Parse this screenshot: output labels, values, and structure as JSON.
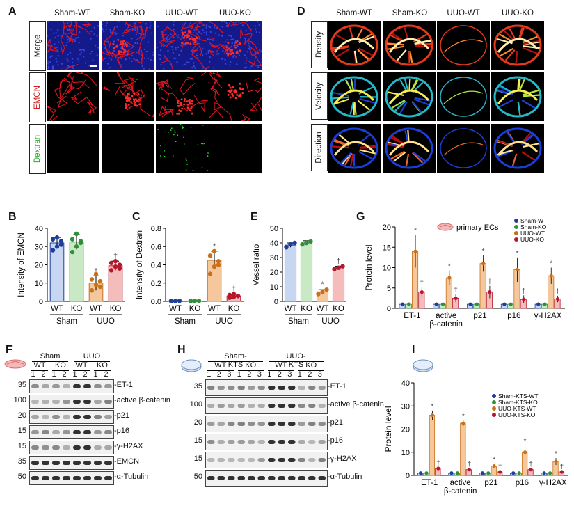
{
  "panels": {
    "A": {
      "letter": "A",
      "columns": [
        "Sham-WT",
        "Sham-KO",
        "UUO-WT",
        "UUO-KO"
      ],
      "rows": [
        "Merge",
        "EMCN",
        "Dextran"
      ]
    },
    "D": {
      "letter": "D",
      "columns": [
        "Sham-WT",
        "Sham-KO",
        "UUO-WT",
        "UUO-KO"
      ],
      "rows": [
        "Density",
        "Velocity",
        "Direction"
      ]
    },
    "F": {
      "letter": "F",
      "groups": [
        "Sham",
        "UUO"
      ],
      "genotypes": [
        "WT",
        "KO",
        "WT",
        "KO"
      ],
      "lanes": [
        "1",
        "2",
        "1",
        "2",
        "1",
        "2",
        "1",
        "2"
      ],
      "mw": [
        "35",
        "100",
        "20",
        "15",
        "15",
        "35",
        "50"
      ],
      "bands": [
        "-ET-1",
        "-active β-catenin",
        "-p21",
        "-p16",
        "-γ-H2AX",
        "-EMCN",
        "-α-Tubulin"
      ]
    },
    "H": {
      "letter": "H",
      "groups": [
        "Sham-KTS",
        "UUO-KTS"
      ],
      "genotypes": [
        "WT",
        "KO",
        "WT",
        "KO"
      ],
      "lanes": [
        "1",
        "2",
        "3",
        "1",
        "2",
        "3",
        "1",
        "2",
        "3",
        "1",
        "2",
        "3"
      ],
      "mw": [
        "35",
        "100",
        "20",
        "15",
        "15",
        "50"
      ],
      "bands": [
        "-ET-1",
        "-active β-catenin",
        "-p21",
        "-p16",
        "-γ-H2AX",
        "-α-Tubulin"
      ]
    }
  },
  "colors": {
    "wt_sham": "#1f3e9a",
    "ko_sham": "#2f8f3a",
    "wt_uuo": "#c9701b",
    "ko_uuo": "#b5182a",
    "bar_wt_sham": "#c7d7f2",
    "bar_ko_sham": "#c9e8c4",
    "bar_wt_uuo": "#f4c89c",
    "bar_ko_uuo": "#f5bcbc"
  },
  "chart_data": [
    {
      "panel": "B",
      "type": "bar",
      "ylabel": "Intensity of EMCN",
      "ylim": [
        0,
        40
      ],
      "yticks": [
        0,
        10,
        20,
        30,
        40
      ],
      "categories": [
        "WT",
        "KO",
        "WT",
        "KO"
      ],
      "groups": [
        "Sham",
        "UUO"
      ],
      "values": [
        32,
        32.5,
        10,
        19.5
      ],
      "errors": [
        3,
        4,
        4,
        2.5
      ],
      "points": [
        [
          28,
          30,
          33,
          34,
          35,
          31
        ],
        [
          27,
          30,
          32,
          34,
          37,
          33
        ],
        [
          6,
          9,
          11,
          12,
          15,
          8
        ],
        [
          17,
          19,
          20,
          21,
          22,
          18
        ]
      ],
      "annotations": [
        "",
        "",
        "*",
        "†"
      ]
    },
    {
      "panel": "C",
      "type": "bar",
      "ylabel": "Intensity of Dextran",
      "ylim": [
        0,
        0.8
      ],
      "yticks": [
        0.0,
        0.2,
        0.4,
        0.6,
        0.8
      ],
      "categories": [
        "WT",
        "KO",
        "WT",
        "KO"
      ],
      "groups": [
        "Sham",
        "UUO"
      ],
      "values": [
        0.005,
        0.005,
        0.45,
        0.06
      ],
      "errors": [
        0.004,
        0.004,
        0.1,
        0.02
      ],
      "points": [
        [
          0.005,
          0.003,
          0.006,
          0.004
        ],
        [
          0.004,
          0.006,
          0.005,
          0.003
        ],
        [
          0.3,
          0.38,
          0.44,
          0.5,
          0.55,
          0.4
        ],
        [
          0.04,
          0.05,
          0.06,
          0.07,
          0.08,
          0.06
        ]
      ],
      "annotations": [
        "",
        "",
        "*",
        "†"
      ]
    },
    {
      "panel": "E",
      "type": "bar",
      "ylabel": "Vessel ratio",
      "ylim": [
        0,
        50
      ],
      "yticks": [
        0,
        10,
        20,
        30,
        40,
        50
      ],
      "categories": [
        "WT",
        "KO",
        "WT",
        "KO"
      ],
      "groups": [
        "Sham",
        "UUO"
      ],
      "values": [
        38.5,
        40,
        6.5,
        23
      ],
      "errors": [
        1.5,
        1.5,
        1.5,
        1
      ],
      "points": [
        [
          37,
          39,
          40
        ],
        [
          39,
          40,
          41
        ],
        [
          5,
          6.5,
          8
        ],
        [
          22,
          23,
          24
        ]
      ],
      "annotations": [
        "",
        "",
        "*",
        "†"
      ]
    },
    {
      "panel": "G",
      "type": "bar",
      "ylabel": "Protein level",
      "ylim": [
        0,
        20
      ],
      "yticks": [
        0,
        5,
        10,
        15,
        20
      ],
      "inset_label": "primary ECs",
      "categories": [
        "ET-1",
        "active β-catenin",
        "p21",
        "p16",
        "γ-H2AX"
      ],
      "series": [
        {
          "name": "Sham-WT",
          "values": [
            1,
            1,
            1,
            1,
            1
          ]
        },
        {
          "name": "Sham-KO",
          "values": [
            1,
            1,
            1,
            1,
            1
          ]
        },
        {
          "name": "UUO-WT",
          "values": [
            14,
            7.5,
            11,
            9.5,
            8
          ]
        },
        {
          "name": "UUO-KO",
          "values": [
            4,
            2.5,
            4,
            2.2,
            2.3
          ]
        }
      ],
      "errors": [
        [
          0.2,
          0.2,
          0.2,
          0.2,
          0.2
        ],
        [
          0.2,
          0.2,
          0.2,
          0.2,
          0.2
        ],
        [
          4,
          1.8,
          2,
          3,
          2
        ],
        [
          1.2,
          1,
          1.5,
          1,
          0.8
        ]
      ],
      "annotations": {
        "UUO-WT": "*",
        "UUO-KO": "†"
      }
    },
    {
      "panel": "I",
      "type": "bar",
      "ylabel": "Protein level",
      "ylim": [
        0,
        40
      ],
      "yticks": [
        0,
        10,
        20,
        30,
        40
      ],
      "categories": [
        "ET-1",
        "active β-catenin",
        "p21",
        "p16",
        "γ-H2AX"
      ],
      "series": [
        {
          "name": "Sham-KTS-WT",
          "values": [
            1,
            1,
            1,
            1,
            1
          ]
        },
        {
          "name": "Sham-KTS-KO",
          "values": [
            1,
            1,
            1,
            1,
            1
          ]
        },
        {
          "name": "UUO-KTS-WT",
          "values": [
            26,
            22.5,
            4,
            10,
            6
          ]
        },
        {
          "name": "UUO-KTS-KO",
          "values": [
            3,
            2.5,
            1.5,
            2.5,
            1.5
          ]
        }
      ],
      "errors": [
        [
          0.2,
          0.2,
          0.2,
          0.2,
          0.2
        ],
        [
          0.2,
          0.2,
          0.2,
          0.2,
          0.2
        ],
        [
          2,
          1.2,
          1,
          3,
          1.5
        ],
        [
          0.5,
          0.5,
          0.4,
          0.5,
          0.4
        ]
      ],
      "annotations": {
        "UUO-KTS-WT": "*",
        "UUO-KTS-KO": "†"
      }
    }
  ]
}
